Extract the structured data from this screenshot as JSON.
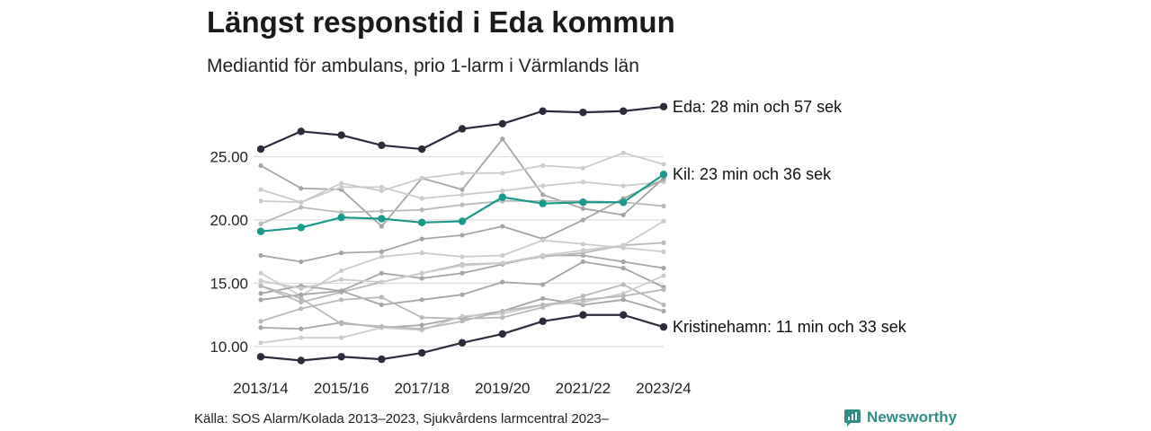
{
  "title": "Längst responstid i Eda kommun",
  "subtitle": "Mediantid för ambulans, prio 1-larm i Värmlands län",
  "source": "Källa: SOS Alarm/Kolada 2013–2023, Sjukvårdens larmcentral 2023–",
  "brand": {
    "name": "Newsworthy",
    "icon": "newsworthy-logo-icon",
    "color": "#2f8f86"
  },
  "colors": {
    "highlight_dark": "#2b2b3b",
    "highlight_teal": "#1a9a8a",
    "background_lines": [
      "#a5a5a5",
      "#b8b8b8",
      "#cbcbcb"
    ],
    "grid": "#dddddd"
  },
  "chart_data": {
    "type": "line",
    "title": "Längst responstid i Eda kommun",
    "subtitle": "Mediantid för ambulans, prio 1-larm i Värmlands län",
    "x": [
      "2013/14",
      "2014/15",
      "2015/16",
      "2016/17",
      "2017/18",
      "2018/19",
      "2019/20",
      "2020/21",
      "2021/22",
      "2022/23",
      "2023/24"
    ],
    "x_tick_labels": [
      "2013/14",
      "2015/16",
      "2017/18",
      "2019/20",
      "2021/22",
      "2023/24"
    ],
    "y_ticks": [
      "10.00",
      "15.00",
      "20.00",
      "25.00"
    ],
    "ylim": [
      8.3,
      29.6
    ],
    "grid": true,
    "highlighted": [
      {
        "name": "Eda",
        "label": "Eda: 28 min och 57 sek",
        "color": "#2b2b3b",
        "values": [
          25.6,
          27.0,
          26.7,
          25.9,
          25.6,
          27.2,
          27.6,
          28.6,
          28.5,
          28.6,
          28.95
        ]
      },
      {
        "name": "Kil",
        "label": "Kil: 23 min och 36 sek",
        "color": "#1a9a8a",
        "values": [
          19.1,
          19.4,
          20.2,
          20.1,
          19.8,
          19.9,
          21.8,
          21.3,
          21.4,
          21.4,
          23.6
        ]
      },
      {
        "name": "Kristinehamn",
        "label": "Kristinehamn: 11 min och 33 sek",
        "color": "#2b2b3b",
        "values": [
          9.2,
          8.9,
          9.2,
          9.0,
          9.5,
          10.3,
          11.0,
          12.0,
          12.5,
          12.5,
          11.55
        ]
      }
    ],
    "background_series": [
      {
        "values": [
          24.3,
          22.5,
          22.4,
          19.5,
          23.3,
          22.4,
          26.4,
          22.0,
          20.9,
          20.4,
          23.3
        ],
        "color": "#a5a5a5"
      },
      {
        "values": [
          22.4,
          21.4,
          22.9,
          22.3,
          23.3,
          23.7,
          23.7,
          24.3,
          24.1,
          25.3,
          24.4
        ],
        "color": "#cbcbcb"
      },
      {
        "values": [
          21.5,
          21.4,
          22.6,
          22.6,
          21.7,
          22.0,
          22.3,
          22.7,
          23.0,
          22.7,
          23.0
        ],
        "color": "#cbcbcb"
      },
      {
        "values": [
          19.7,
          21.0,
          20.6,
          20.7,
          20.8,
          21.2,
          21.5,
          21.5,
          21.5,
          21.4,
          21.1
        ],
        "color": "#b8b8b8"
      },
      {
        "values": [
          17.2,
          16.7,
          17.4,
          17.5,
          18.5,
          18.8,
          19.5,
          18.5,
          20.0,
          21.7,
          23.2
        ],
        "color": "#a5a5a5"
      },
      {
        "values": [
          15.8,
          14.0,
          16.0,
          17.1,
          17.4,
          17.1,
          17.2,
          18.4,
          18.1,
          17.8,
          17.5
        ],
        "color": "#cbcbcb"
      },
      {
        "values": [
          14.2,
          14.8,
          14.4,
          15.8,
          15.4,
          15.8,
          16.5,
          17.2,
          17.2,
          16.7,
          16.2
        ],
        "color": "#a5a5a5"
      },
      {
        "values": [
          14.8,
          13.5,
          14.3,
          15.1,
          15.8,
          16.5,
          16.6,
          17.1,
          17.4,
          18.0,
          18.2
        ],
        "color": "#b8b8b8"
      },
      {
        "values": [
          15.2,
          14.6,
          15.3,
          15.1,
          15.8,
          16.4,
          16.6,
          17.2,
          17.6,
          18.0,
          19.9
        ],
        "color": "#cbcbcb"
      },
      {
        "values": [
          13.7,
          14.1,
          14.4,
          13.3,
          13.7,
          14.1,
          15.1,
          14.9,
          16.7,
          16.2,
          14.7
        ],
        "color": "#a5a5a5"
      },
      {
        "values": [
          12.0,
          13.0,
          13.7,
          13.9,
          12.3,
          12.2,
          12.3,
          13.1,
          14.0,
          14.9,
          13.3
        ],
        "color": "#b8b8b8"
      },
      {
        "values": [
          11.5,
          11.4,
          11.9,
          11.5,
          11.7,
          12.3,
          12.8,
          13.8,
          13.3,
          13.7,
          12.8
        ],
        "color": "#a5a5a5"
      },
      {
        "values": [
          10.3,
          10.7,
          10.7,
          11.5,
          11.3,
          12.4,
          12.6,
          13.3,
          13.5,
          14.2,
          15.6
        ],
        "color": "#cbcbcb"
      },
      {
        "values": [
          14.8,
          13.8,
          11.8,
          11.6,
          11.4,
          12.0,
          12.8,
          13.3,
          13.7,
          14.0,
          14.5
        ],
        "color": "#b8b8b8"
      }
    ]
  }
}
